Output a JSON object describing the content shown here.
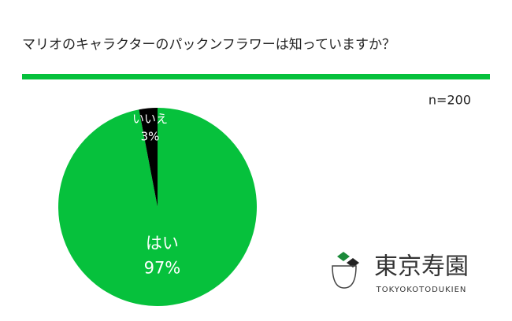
{
  "chart_data": {
    "type": "pie",
    "title": "マリオのキャラクターのパックンフラワーは知っていますか？",
    "annotation": "n=200",
    "categories": [
      "はい",
      "いいえ"
    ],
    "values": [
      97,
      3
    ],
    "value_labels": [
      "97%",
      "3%"
    ],
    "colors": [
      "#06c13c",
      "#000000"
    ],
    "start": "top",
    "direction": "clockwise"
  },
  "logo": {
    "name": "東京寿園",
    "romaji": "TOKYOKOTODUKIEN"
  }
}
